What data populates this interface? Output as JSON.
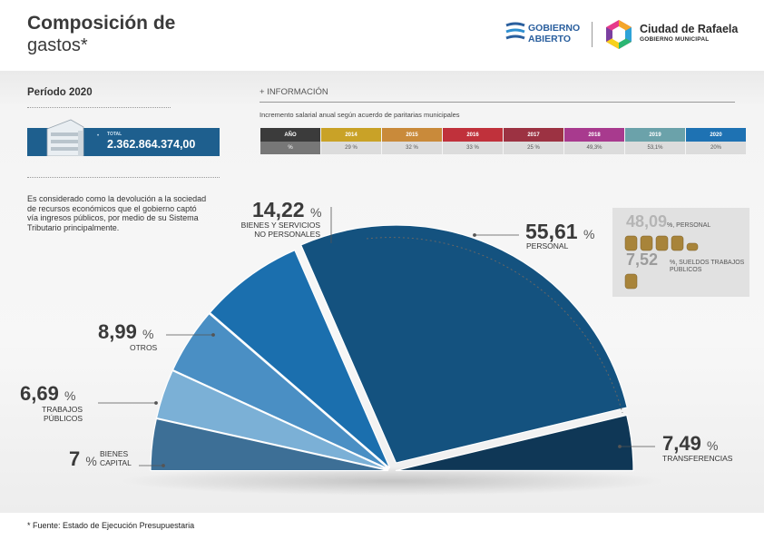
{
  "header": {
    "title_line1": "Composición de",
    "title_line2": "gastos*",
    "logo_gobierno_line1": "GOBIERNO",
    "logo_gobierno_line2": "ABIERTO",
    "logo_ciudad": "Ciudad de Rafaela",
    "logo_ciudad_sub": "GOBIERNO MUNICIPAL"
  },
  "periodo": "Período 2020",
  "total": {
    "label": "TOTAL",
    "value": "2.362.864.374,00"
  },
  "info": {
    "title": "+ INFORMACIÓN",
    "subtitle": "Incremento salarial anual según acuerdo de paritarias municipales",
    "columns": [
      {
        "year": "AÑO",
        "value": "%",
        "color": "#3b3b3b"
      },
      {
        "year": "2014",
        "value": "29 %",
        "color": "#c9a227"
      },
      {
        "year": "2015",
        "value": "32 %",
        "color": "#c98a3a"
      },
      {
        "year": "2016",
        "value": "33 %",
        "color": "#c0313b"
      },
      {
        "year": "2017",
        "value": "25 %",
        "color": "#9c3242"
      },
      {
        "year": "2018",
        "value": "49,3%",
        "color": "#a83a8e"
      },
      {
        "year": "2019",
        "value": "53,1%",
        "color": "#6ba2aa"
      },
      {
        "year": "2020",
        "value": "20%",
        "color": "#1e72b3"
      }
    ]
  },
  "description": "Es considerado como la devolución a la sociedad de recursos económicos que el gobierno captó vía ingresos públicos, por medio de su Sistema Tributario principalmente.",
  "personal_detail": {
    "personal_value": "48,09",
    "personal_label": "%, PERSONAL",
    "trabajos_value": "7,52",
    "trabajos_label": "%, SUELDOS TRABAJOS PÚBLICOS"
  },
  "footnote": "* Fuente: Estado de Ejecución Presupuestaria",
  "chart_data": {
    "type": "pie",
    "subtype": "half-pie",
    "unit": "%",
    "slices": [
      {
        "label": "BIENES CAPITAL",
        "value": 7,
        "value_text": "7",
        "color": "#3d6f96"
      },
      {
        "label": "TRABAJOS PÚBLICOS",
        "value": 6.69,
        "value_text": "6,69",
        "color": "#7bb0d6"
      },
      {
        "label": "OTROS",
        "value": 8.99,
        "value_text": "8,99",
        "color": "#4a8fc4"
      },
      {
        "label": "BIENES Y SERVICIOS NO PERSONALES",
        "value": 14.22,
        "value_text": "14,22",
        "color": "#1b6fae"
      },
      {
        "label": "PERSONAL",
        "value": 55.61,
        "value_text": "55,61",
        "color": "#14527f"
      },
      {
        "label": "TRANSFERENCIAS",
        "value": 7.49,
        "value_text": "7,49",
        "color": "#0f3756"
      }
    ]
  }
}
